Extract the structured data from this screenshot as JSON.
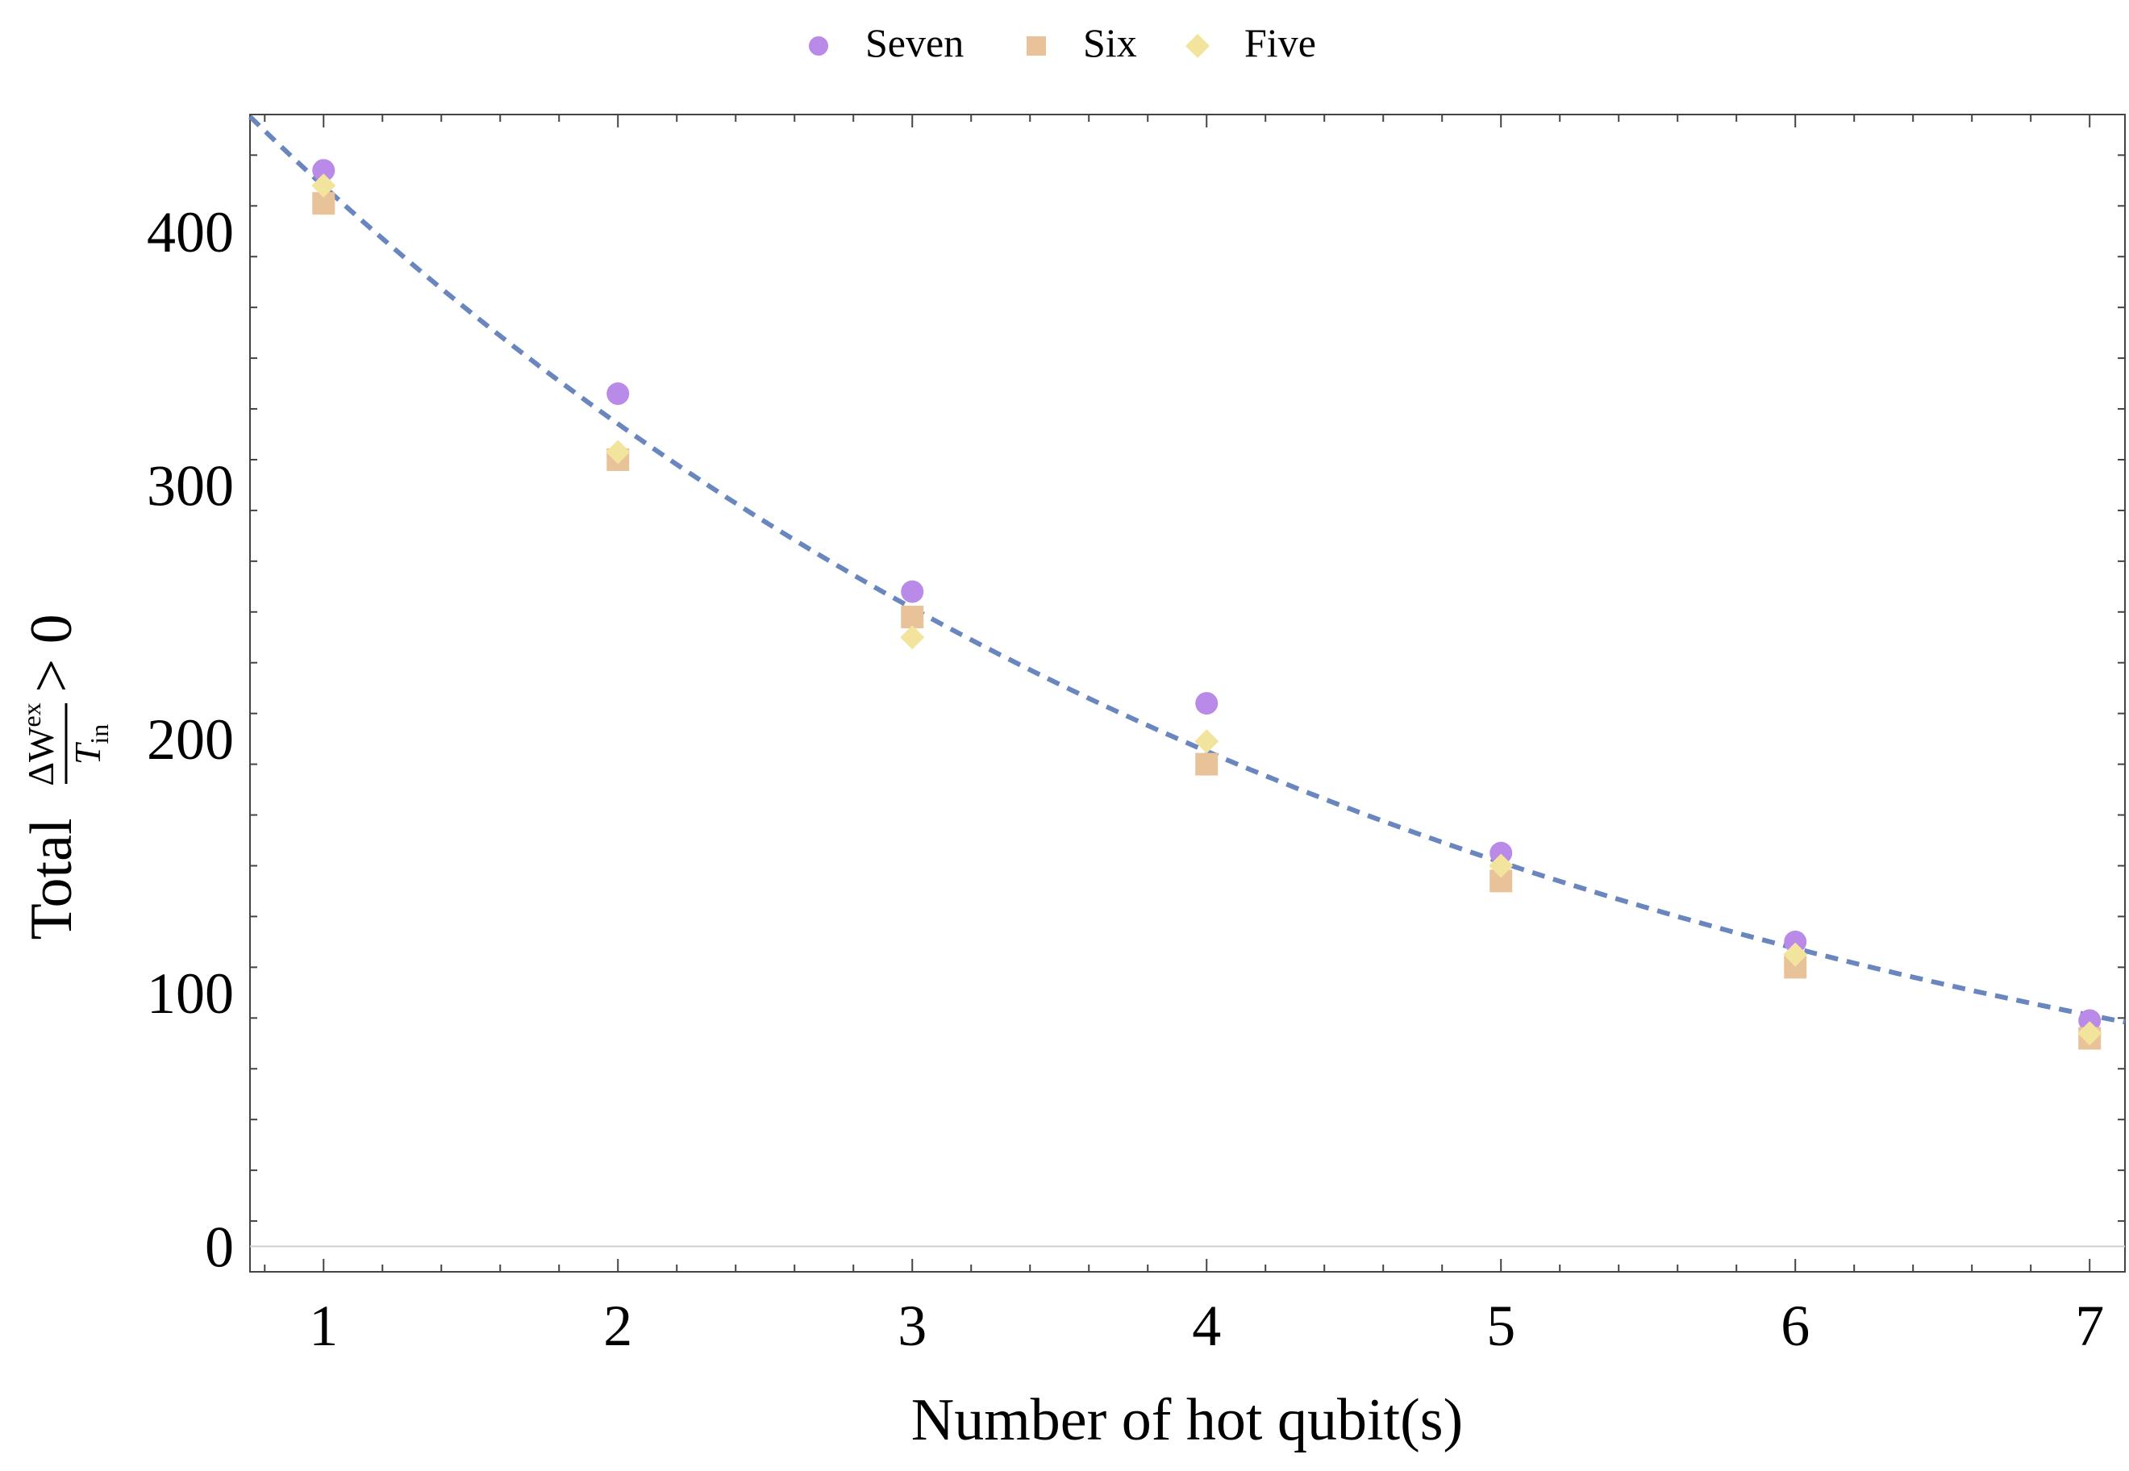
{
  "chart_data": {
    "type": "scatter",
    "title": "",
    "xlabel": "Number of hot qubit(s)",
    "ylabel": {
      "prefix": "Total",
      "numerator": "ΔW",
      "numerator_sup": "ex",
      "denominator": "T",
      "denominator_sub": "in",
      "suffix": "> 0"
    },
    "xlim": [
      0.75,
      7.12
    ],
    "ylim": [
      -10,
      446
    ],
    "xticks": [
      1,
      2,
      3,
      4,
      5,
      6,
      7
    ],
    "xtick_labels": [
      "1",
      "2",
      "3",
      "4",
      "5",
      "6",
      "7"
    ],
    "yticks": [
      0,
      100,
      200,
      300,
      400
    ],
    "ytick_labels": [
      "0",
      "100",
      "200",
      "300",
      "400"
    ],
    "legend_position": "top-center",
    "grid": false,
    "series": [
      {
        "name": "Seven",
        "marker": "circle",
        "color": "#b98ae8",
        "x": [
          1,
          2,
          3,
          4,
          5,
          6,
          7
        ],
        "y": [
          424,
          336,
          258,
          214,
          155,
          120,
          89
        ]
      },
      {
        "name": "Six",
        "marker": "square",
        "color": "#e8c39a",
        "x": [
          1,
          2,
          3,
          4,
          5,
          6,
          7
        ],
        "y": [
          411,
          310,
          248,
          190,
          144,
          110,
          82
        ]
      },
      {
        "name": "Five",
        "marker": "diamond",
        "color": "#f2e49c",
        "x": [
          1,
          2,
          3,
          4,
          5,
          6,
          7
        ],
        "y": [
          418,
          313,
          240,
          199,
          150,
          115,
          84
        ]
      }
    ],
    "fit": {
      "style": "dashed",
      "color": "#6a86bf",
      "model": "a*exp(-b*x)",
      "a": 538.5,
      "b": 0.2538
    }
  }
}
